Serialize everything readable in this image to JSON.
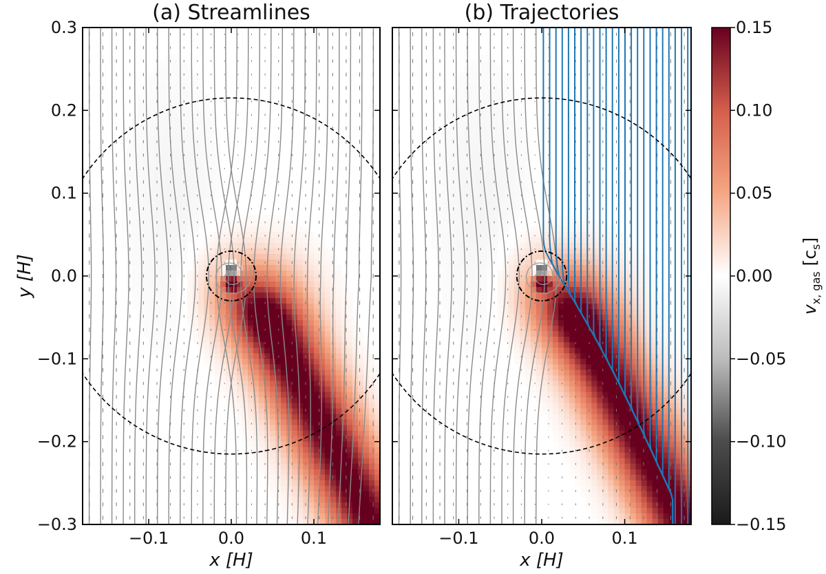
{
  "chart_data": [
    {
      "type": "heatmap",
      "panel": "a",
      "title": "(a) Streamlines",
      "xlabel": "x [H]",
      "ylabel": "y [H]",
      "xlim": [
        -0.18,
        0.18
      ],
      "ylim": [
        -0.3,
        0.3
      ],
      "xticks": [
        -0.1,
        0.0,
        0.1
      ],
      "xtick_labels": [
        "−0.1",
        "0.0",
        "0.1"
      ],
      "yticks": [
        0.3,
        0.2,
        0.1,
        0.0,
        -0.1,
        -0.2,
        -0.3
      ],
      "ytick_labels": [
        "0.3",
        "0.2",
        "0.1",
        "0.0",
        "−0.1",
        "−0.2",
        "−0.3"
      ],
      "quantity": "v_x,gas [c_s]",
      "overlays": [
        "gas velocity streamlines (grey)",
        "velocity quiver arrows (grey)",
        "dashed circle radius ~0.215 H (Hill/Bondi)",
        "dash-dot circle radius ~0.03 H"
      ],
      "dashed_circle_radius": 0.215,
      "dashdot_circle_radius": 0.03
    },
    {
      "type": "heatmap",
      "panel": "b",
      "title": "(b) Trajectories",
      "xlabel": "x [H]",
      "xlim": [
        -0.18,
        0.18
      ],
      "ylim": [
        -0.3,
        0.3
      ],
      "xticks": [
        -0.1,
        0.0,
        0.1
      ],
      "xtick_labels": [
        "−0.1",
        "0.0",
        "0.1"
      ],
      "quantity": "v_x,gas [c_s]",
      "overlays": [
        "gas particle trajectories (grey)",
        "accreted trajectories (blue)",
        "dashed circle radius ~0.215 H",
        "dash-dot circle radius ~0.03 H"
      ],
      "dashed_circle_radius": 0.215,
      "dashdot_circle_radius": 0.03
    }
  ],
  "colorbar": {
    "label": "v",
    "label_sub": "x, gas",
    "label_unit": "[c",
    "label_unit_sub": "s",
    "label_unit_close": "]",
    "range": [
      -0.15,
      0.15
    ],
    "ticks": [
      0.15,
      0.1,
      0.05,
      0.0,
      -0.05,
      -0.1,
      -0.15
    ],
    "tick_labels": [
      "0.15",
      "0.10",
      "0.05",
      "0.00",
      "−0.05",
      "−0.10",
      "−0.15"
    ],
    "cmap": "RdGy_r"
  },
  "colors": {
    "positive": "#67001f",
    "mid": "#ffffff",
    "negative": "#1a1a1a",
    "streamline": "#8a8a8a",
    "trajectory_accreted": "#1f77b4"
  }
}
